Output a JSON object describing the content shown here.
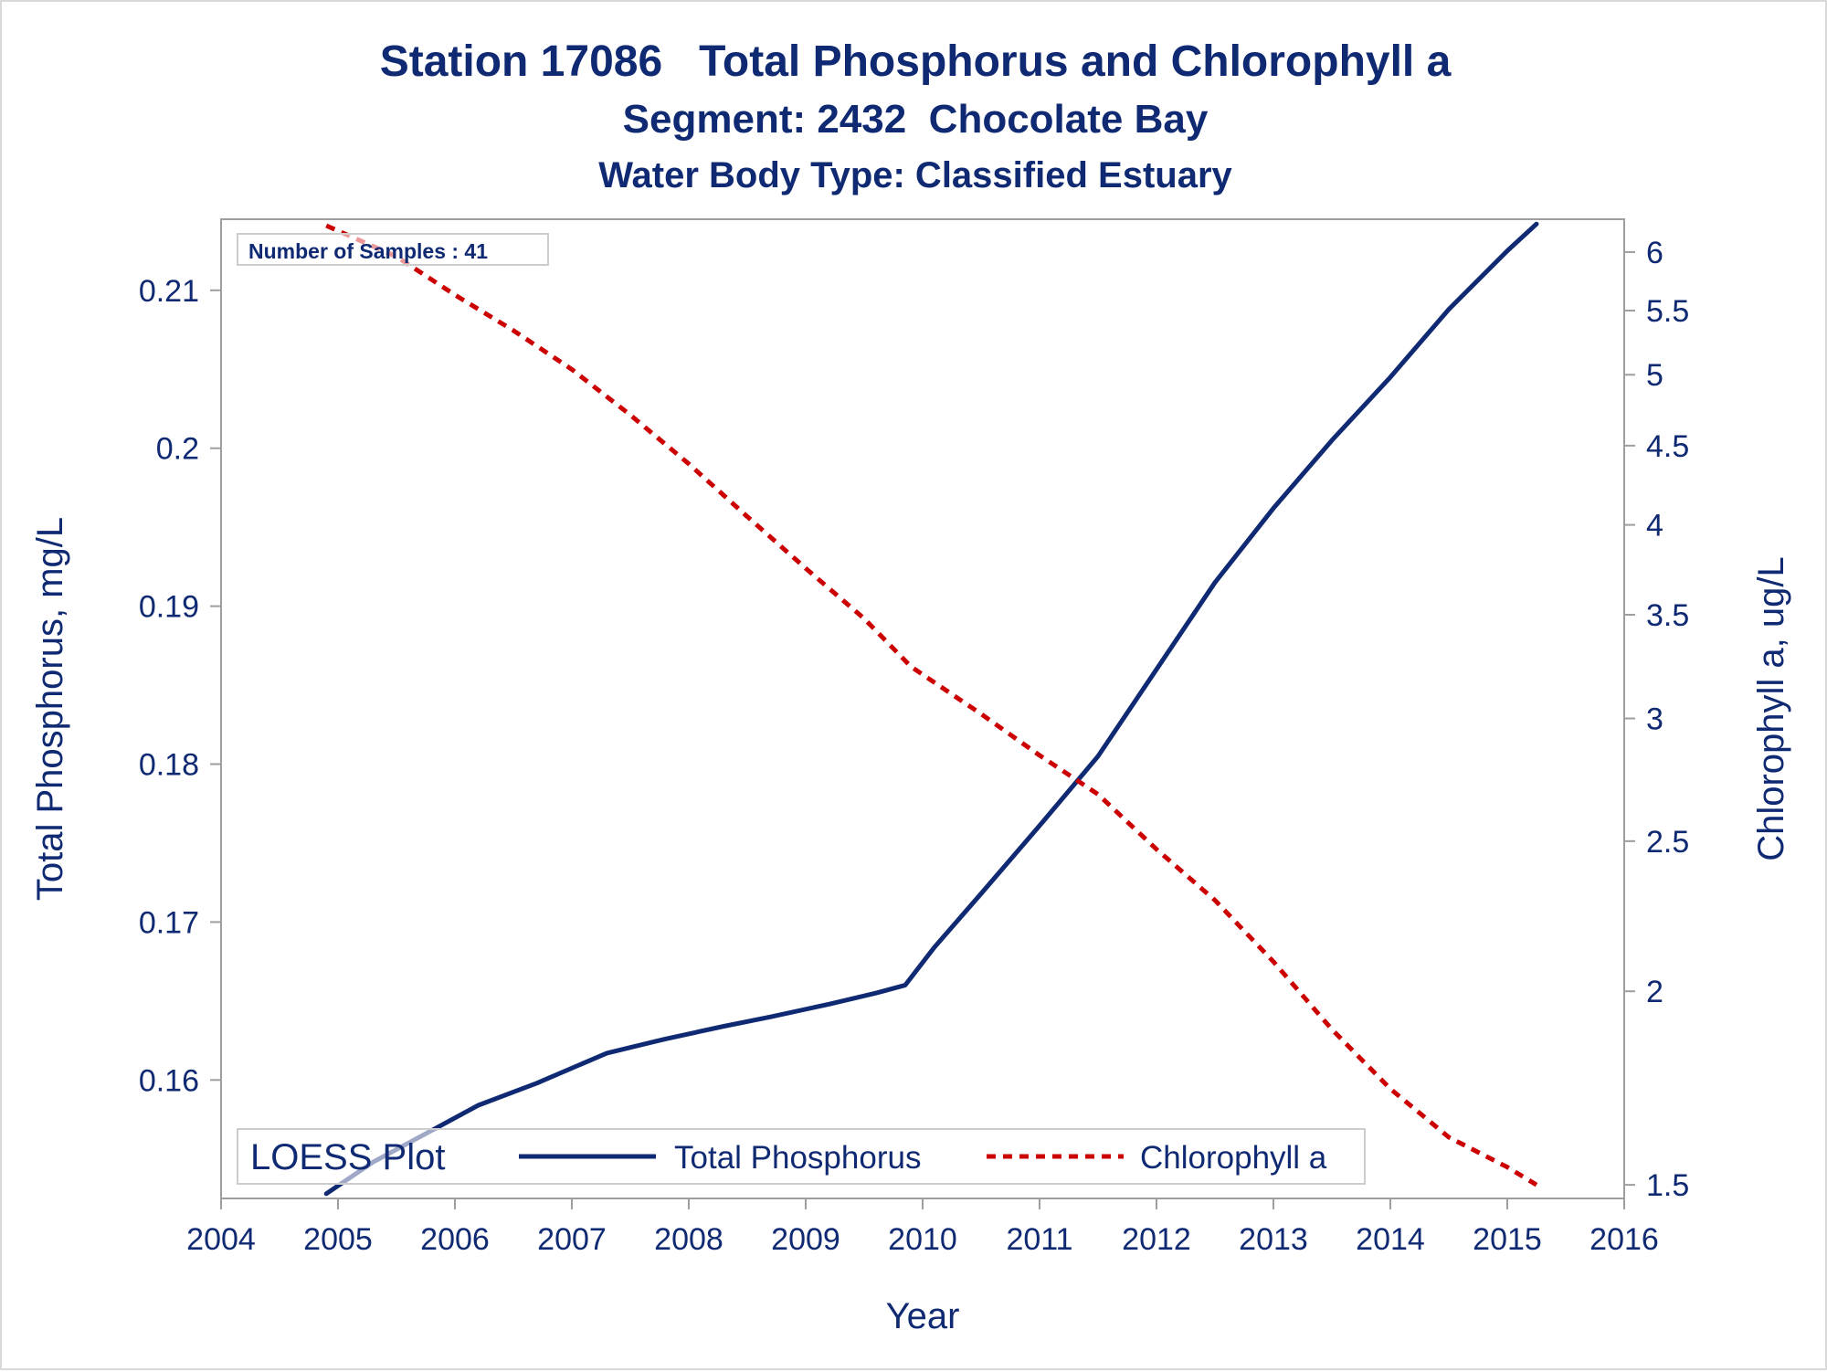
{
  "titles": {
    "line1": "Station 17086   Total Phosphorus and Chlorophyll a",
    "line2": "Segment: 2432  Chocolate Bay",
    "line3": "Water Body Type: Classified Estuary"
  },
  "colors": {
    "text": "#0f2a73",
    "tp_line": "#0f2a73",
    "chla_line": "#cc0000",
    "frame": "#9e9e9e"
  },
  "chart_data": {
    "type": "line",
    "xlabel": "Year",
    "ylabel_left": "Total Phosphorus, mg/L",
    "ylabel_right": "Chlorophyll a, ug/L",
    "xlim": [
      2004,
      2016
    ],
    "ylim_left": [
      0.1525,
      0.2145
    ],
    "ylim_right": [
      1.47,
      6.3
    ],
    "y_right_scale": "log",
    "grid": false,
    "x_ticks": [
      2004,
      2005,
      2006,
      2007,
      2008,
      2009,
      2010,
      2011,
      2012,
      2013,
      2014,
      2015,
      2016
    ],
    "x_tick_labels": [
      "2004",
      "2005",
      "2006",
      "2007",
      "2008",
      "2009",
      "2010",
      "2011",
      "2012",
      "2013",
      "2014",
      "2015",
      "2016"
    ],
    "y_left_ticks": [
      0.16,
      0.17,
      0.18,
      0.19,
      0.2,
      0.21
    ],
    "y_left_tick_labels": [
      "0.16",
      "0.17",
      "0.18",
      "0.19",
      "0.2",
      "0.21"
    ],
    "y_right_ticks": [
      1.5,
      2,
      2.5,
      3,
      3.5,
      4,
      4.5,
      5,
      5.5,
      6
    ],
    "y_right_tick_labels": [
      "1.5",
      "2",
      "2.5",
      "3",
      "3.5",
      "4",
      "4.5",
      "5",
      "5.5",
      "6"
    ],
    "sample_note": "Number of Samples : 41",
    "legend": {
      "title": "LOESS Plot",
      "position": "bottom-left inside plot"
    },
    "series": [
      {
        "name": "Total Phosphorus",
        "axis": "left",
        "style": "solid",
        "x": [
          2004.9,
          2005.3,
          2005.8,
          2006.2,
          2006.7,
          2007.3,
          2007.8,
          2008.3,
          2008.7,
          2009.2,
          2009.6,
          2009.85,
          2010.1,
          2010.5,
          2011.0,
          2011.5,
          2012.0,
          2012.5,
          2013.0,
          2013.5,
          2014.0,
          2014.5,
          2015.0,
          2015.25
        ],
        "y": [
          0.1528,
          0.1548,
          0.1568,
          0.1584,
          0.1598,
          0.1617,
          0.1626,
          0.1634,
          0.164,
          0.1648,
          0.1655,
          0.166,
          0.1684,
          0.1718,
          0.1761,
          0.1805,
          0.186,
          0.1915,
          0.1962,
          0.2005,
          0.2045,
          0.2088,
          0.2125,
          0.2142
        ]
      },
      {
        "name": "Chlorophyll a",
        "axis": "right",
        "style": "dotted",
        "x": [
          2004.9,
          2005.5,
          2006.0,
          2006.5,
          2007.0,
          2007.5,
          2008.0,
          2008.5,
          2009.0,
          2009.5,
          2009.9,
          2010.5,
          2011.0,
          2011.5,
          2012.0,
          2012.5,
          2013.0,
          2013.5,
          2014.0,
          2014.5,
          2015.0,
          2015.25
        ],
        "y": [
          6.24,
          5.96,
          5.63,
          5.34,
          5.04,
          4.71,
          4.38,
          4.05,
          3.75,
          3.48,
          3.24,
          3.02,
          2.84,
          2.68,
          2.47,
          2.29,
          2.09,
          1.89,
          1.73,
          1.61,
          1.54,
          1.5
        ]
      }
    ]
  }
}
